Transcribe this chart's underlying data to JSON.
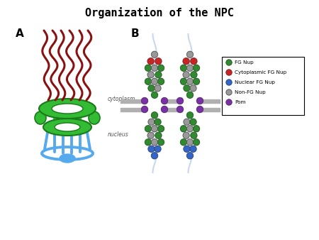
{
  "title": "Organization of the NPC",
  "title_fontsize": 11,
  "title_fontfamily": "monospace",
  "bg_color": "#ffffff",
  "label_A": "A",
  "label_B": "B",
  "cytoplasm_label": "cytoplasm",
  "nucleus_label": "nucleus",
  "legend_items": [
    {
      "label": "FG Nup",
      "color": "#2e8b2e"
    },
    {
      "label": "Cytoplasmic FG Nup",
      "color": "#cc2222"
    },
    {
      "label": "Nuclear FG Nup",
      "color": "#3366cc"
    },
    {
      "label": "Non-FG Nup",
      "color": "#999999"
    },
    {
      "label": "Pom",
      "color": "#7b2fa8"
    }
  ],
  "membrane_color": "#b0b0b0",
  "fg_nup_color": "#2e8b2e",
  "cyto_fg_color": "#cc2222",
  "nuc_fg_color": "#3366cc",
  "non_fg_color": "#999999",
  "pom_color": "#7b2fa8",
  "spoke_color": "#55aaee",
  "green_ring_color": "#33bb33",
  "dark_green_color": "#1a7a1a",
  "dark_red_color": "#881111",
  "filament_color": "#c8d8ee"
}
